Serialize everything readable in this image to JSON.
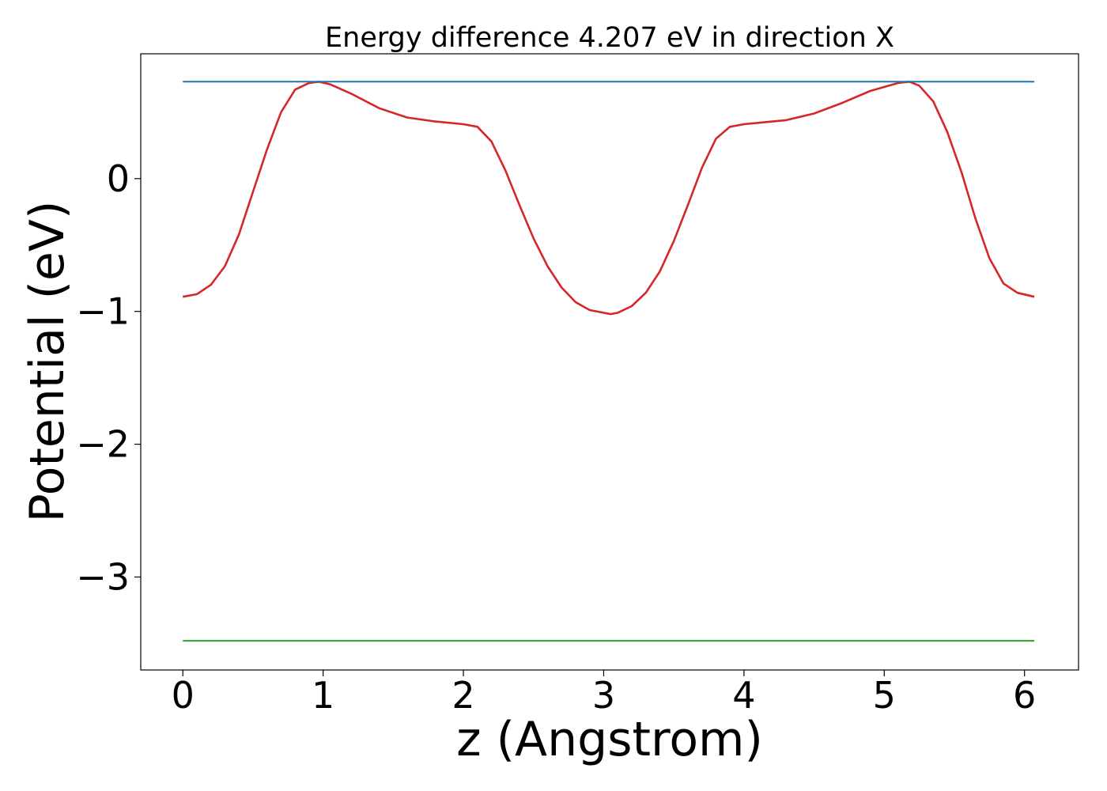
{
  "chart_data": {
    "type": "line",
    "title": "Energy difference 4.207 eV in direction X",
    "xlabel": "z (Angstrom)",
    "ylabel": "Potential (eV)",
    "xlim": [
      -0.3,
      6.385
    ],
    "ylim": [
      -3.7,
      0.94
    ],
    "grid": false,
    "legend": "none",
    "x_ticks": [
      0,
      1,
      2,
      3,
      4,
      5,
      6
    ],
    "x_tick_labels": [
      "0",
      "1",
      "2",
      "3",
      "4",
      "5",
      "6"
    ],
    "y_ticks": [
      0,
      -1,
      -2,
      -3
    ],
    "y_tick_labels": [
      "0",
      "−1",
      "−2",
      "−3"
    ],
    "series": [
      {
        "color": "#d62728",
        "x": [
          0.0,
          0.1,
          0.2,
          0.3,
          0.4,
          0.5,
          0.6,
          0.7,
          0.8,
          0.9,
          0.97,
          1.05,
          1.2,
          1.4,
          1.6,
          1.8,
          2.0,
          2.1,
          2.2,
          2.3,
          2.4,
          2.5,
          2.6,
          2.7,
          2.8,
          2.9,
          3.0,
          3.05,
          3.1,
          3.2,
          3.3,
          3.4,
          3.5,
          3.6,
          3.7,
          3.8,
          3.9,
          4.0,
          4.1,
          4.3,
          4.5,
          4.7,
          4.9,
          5.1,
          5.18,
          5.25,
          5.35,
          5.45,
          5.55,
          5.65,
          5.75,
          5.85,
          5.95,
          6.07
        ],
        "y": [
          -0.89,
          -0.87,
          -0.8,
          -0.66,
          -0.42,
          -0.1,
          0.22,
          0.5,
          0.67,
          0.72,
          0.73,
          0.71,
          0.64,
          0.53,
          0.46,
          0.43,
          0.41,
          0.39,
          0.28,
          0.06,
          -0.2,
          -0.45,
          -0.66,
          -0.82,
          -0.93,
          -0.99,
          -1.01,
          -1.02,
          -1.01,
          -0.96,
          -0.86,
          -0.7,
          -0.47,
          -0.2,
          0.08,
          0.3,
          0.39,
          0.41,
          0.42,
          0.44,
          0.49,
          0.57,
          0.66,
          0.72,
          0.73,
          0.7,
          0.58,
          0.35,
          0.05,
          -0.3,
          -0.6,
          -0.79,
          -0.86,
          -0.89
        ]
      },
      {
        "color": "#1f77b4",
        "x": [
          0.0,
          6.07
        ],
        "y": [
          0.73,
          0.73
        ]
      },
      {
        "color": "#2ca02c",
        "x": [
          0.0,
          6.07
        ],
        "y": [
          -3.48,
          -3.48
        ]
      }
    ]
  }
}
